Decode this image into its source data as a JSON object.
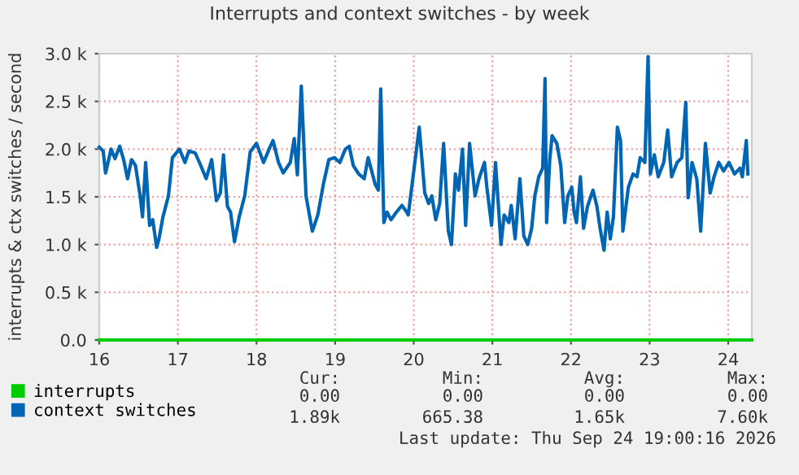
{
  "chart_data": {
    "type": "line",
    "title": "Interrupts and context switches - by week",
    "ylabel": "interrupts & ctx switches / second",
    "xlim": [
      16,
      24.3
    ],
    "xticks": [
      16,
      17,
      18,
      19,
      20,
      21,
      22,
      23,
      24
    ],
    "ylim": [
      0,
      3000
    ],
    "yticks": [
      {
        "value": 0,
        "label": "0.0"
      },
      {
        "value": 500,
        "label": "0.5 k"
      },
      {
        "value": 1000,
        "label": "1.0 k"
      },
      {
        "value": 1500,
        "label": "1.5 k"
      },
      {
        "value": 2000,
        "label": "2.0 k"
      },
      {
        "value": 2500,
        "label": "2.5 k"
      },
      {
        "value": 3000,
        "label": "3.0 k"
      }
    ],
    "grid": true,
    "legend": "bottom left",
    "marker": "none",
    "line_style": "solid",
    "series": [
      {
        "name": "interrupts",
        "color": "#00cc00",
        "x": [
          16,
          24.3
        ],
        "values": [
          0,
          0
        ]
      },
      {
        "name": "context switches",
        "color": "#0066b3",
        "x": [
          16.0,
          16.05,
          16.08,
          16.12,
          16.15,
          16.2,
          16.26,
          16.31,
          16.36,
          16.41,
          16.46,
          16.52,
          16.55,
          16.59,
          16.64,
          16.68,
          16.73,
          16.76,
          16.81,
          16.88,
          16.93,
          17.02,
          17.09,
          17.14,
          17.22,
          17.29,
          17.36,
          17.43,
          17.49,
          17.54,
          17.58,
          17.63,
          17.67,
          17.72,
          17.78,
          17.85,
          17.92,
          18.0,
          18.09,
          18.16,
          18.21,
          18.28,
          18.34,
          18.43,
          18.48,
          18.52,
          18.57,
          18.63,
          18.71,
          18.78,
          18.85,
          18.92,
          18.99,
          19.06,
          19.13,
          19.18,
          19.23,
          19.3,
          19.37,
          19.42,
          19.51,
          19.55,
          19.58,
          19.62,
          19.66,
          19.71,
          19.78,
          19.85,
          19.91,
          19.93,
          19.97,
          20.07,
          20.14,
          20.19,
          20.23,
          20.28,
          20.33,
          20.38,
          20.44,
          20.48,
          20.53,
          20.57,
          20.62,
          20.66,
          20.71,
          20.78,
          20.83,
          20.9,
          20.93,
          20.99,
          21.04,
          21.11,
          21.15,
          21.21,
          21.24,
          21.29,
          21.35,
          21.4,
          21.45,
          21.5,
          21.54,
          21.59,
          21.64,
          21.67,
          21.69,
          21.73,
          21.76,
          21.82,
          21.87,
          21.92,
          21.96,
          22.01,
          22.04,
          22.07,
          22.12,
          22.16,
          22.21,
          22.28,
          22.33,
          22.37,
          22.42,
          22.46,
          22.5,
          22.54,
          22.59,
          22.63,
          22.66,
          22.73,
          22.79,
          22.84,
          22.88,
          22.94,
          22.98,
          23.01,
          23.06,
          23.11,
          23.18,
          23.23,
          23.28,
          23.35,
          23.41,
          23.46,
          23.49,
          23.54,
          23.6,
          23.65,
          23.71,
          23.77,
          23.82,
          23.88,
          23.94,
          24.01,
          24.08,
          24.15,
          24.18,
          24.23,
          24.25
        ],
        "values": [
          2020,
          1980,
          1750,
          1890,
          2000,
          1900,
          2030,
          1890,
          1690,
          1890,
          1830,
          1510,
          1290,
          1860,
          1200,
          1260,
          970,
          1060,
          1290,
          1510,
          1910,
          2000,
          1860,
          1980,
          1960,
          1830,
          1690,
          1890,
          1460,
          1540,
          1940,
          1400,
          1340,
          1030,
          1290,
          1510,
          1970,
          2060,
          1860,
          2000,
          2090,
          1860,
          1750,
          1860,
          2110,
          1730,
          2660,
          1510,
          1140,
          1310,
          1630,
          1890,
          1910,
          1860,
          2000,
          2030,
          1830,
          1740,
          1690,
          1910,
          1630,
          1570,
          2630,
          1230,
          1340,
          1260,
          1340,
          1410,
          1340,
          1310,
          1570,
          2230,
          1540,
          1430,
          1510,
          1260,
          1430,
          2060,
          1140,
          1000,
          1740,
          1570,
          2000,
          1200,
          2060,
          1510,
          1690,
          1860,
          1600,
          1200,
          1860,
          1000,
          1310,
          1230,
          1410,
          1060,
          1690,
          1090,
          1000,
          1170,
          1510,
          1710,
          1800,
          2740,
          1230,
          1890,
          2140,
          2060,
          1830,
          1230,
          1510,
          1600,
          1340,
          1230,
          1710,
          1170,
          1400,
          1570,
          1400,
          1170,
          940,
          1340,
          1060,
          1290,
          2230,
          2090,
          1140,
          1600,
          1740,
          1710,
          1910,
          1860,
          2970,
          1740,
          1940,
          1710,
          1860,
          2200,
          1710,
          1860,
          1910,
          2490,
          1490,
          1860,
          1690,
          1140,
          2060,
          1540,
          1710,
          1860,
          1770,
          1860,
          1740,
          1800,
          1710,
          2090,
          1740
        ]
      }
    ],
    "annotations": [
      "Cur:",
      "Min:",
      "Avg:",
      "Max:",
      "0.00",
      "0.00",
      "0.00",
      "0.00",
      "1.89k",
      "665.38",
      "1.65k",
      "7.60k",
      "Last update: Thu Sep 24 19:00:16 2026"
    ]
  }
}
